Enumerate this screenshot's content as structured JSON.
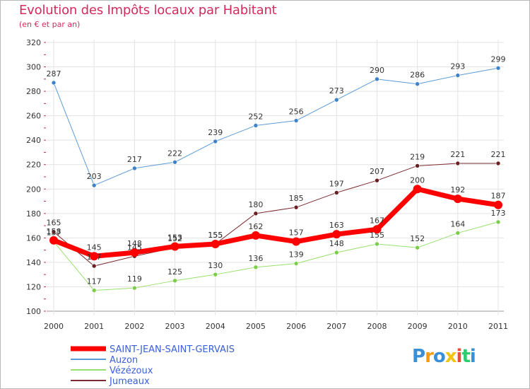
{
  "header": {
    "title": "Evolution des Impôts locaux par Habitant",
    "subtitle": "(en € et par an)"
  },
  "colors": {
    "title": "#d22b5c",
    "grid": "#e0e0e0",
    "axis_text": "#333333"
  },
  "chart_data": {
    "type": "line",
    "x": [
      "2000",
      "2001",
      "2002",
      "2003",
      "2004",
      "2005",
      "2006",
      "2007",
      "2008",
      "2009",
      "2010",
      "2011"
    ],
    "ylim": [
      100,
      320
    ],
    "yticks": [
      100,
      120,
      140,
      160,
      180,
      200,
      220,
      240,
      260,
      280,
      300,
      320
    ],
    "grid": true,
    "legend_position": "bottom-left",
    "series": [
      {
        "name": "Auzon",
        "color": "#5b9ad6",
        "dot": "#3e82c8",
        "width": 1,
        "values": [
          287,
          203,
          217,
          222,
          239,
          252,
          256,
          273,
          290,
          286,
          293,
          299
        ]
      },
      {
        "name": "Vézézoux",
        "color": "#98e06d",
        "dot": "#7ccd4a",
        "width": 1,
        "values": [
          157,
          117,
          119,
          125,
          130,
          136,
          139,
          148,
          155,
          152,
          164,
          173
        ]
      },
      {
        "name": "Jumeaux",
        "color": "#7a2a30",
        "dot": "#6a1f24",
        "width": 1,
        "values": [
          165,
          137,
          145,
          152,
          155,
          180,
          185,
          197,
          207,
          219,
          221,
          221
        ]
      },
      {
        "name": "SAINT-JEAN-SAINT-GERVAIS",
        "color": "#ff0000",
        "dot": "#ff0000",
        "width": 7,
        "values": [
          158,
          145,
          148,
          153,
          155,
          162,
          157,
          163,
          167,
          200,
          192,
          187
        ]
      }
    ],
    "legend_order": [
      "SAINT-JEAN-SAINT-GERVAIS",
      "Auzon",
      "Vézézoux",
      "Jumeaux"
    ]
  },
  "logo": {
    "letters": [
      {
        "ch": "P",
        "color": "#3a8fd6"
      },
      {
        "ch": "r",
        "color": "#f39c12"
      },
      {
        "ch": "o",
        "color": "#3a8fd6"
      },
      {
        "ch": "x",
        "color": "#f1c40f"
      },
      {
        "ch": "i",
        "color": "#e74c3c"
      },
      {
        "ch": "t",
        "color": "#2ecc71"
      },
      {
        "ch": "i",
        "color": "#3a8fd6"
      }
    ]
  }
}
